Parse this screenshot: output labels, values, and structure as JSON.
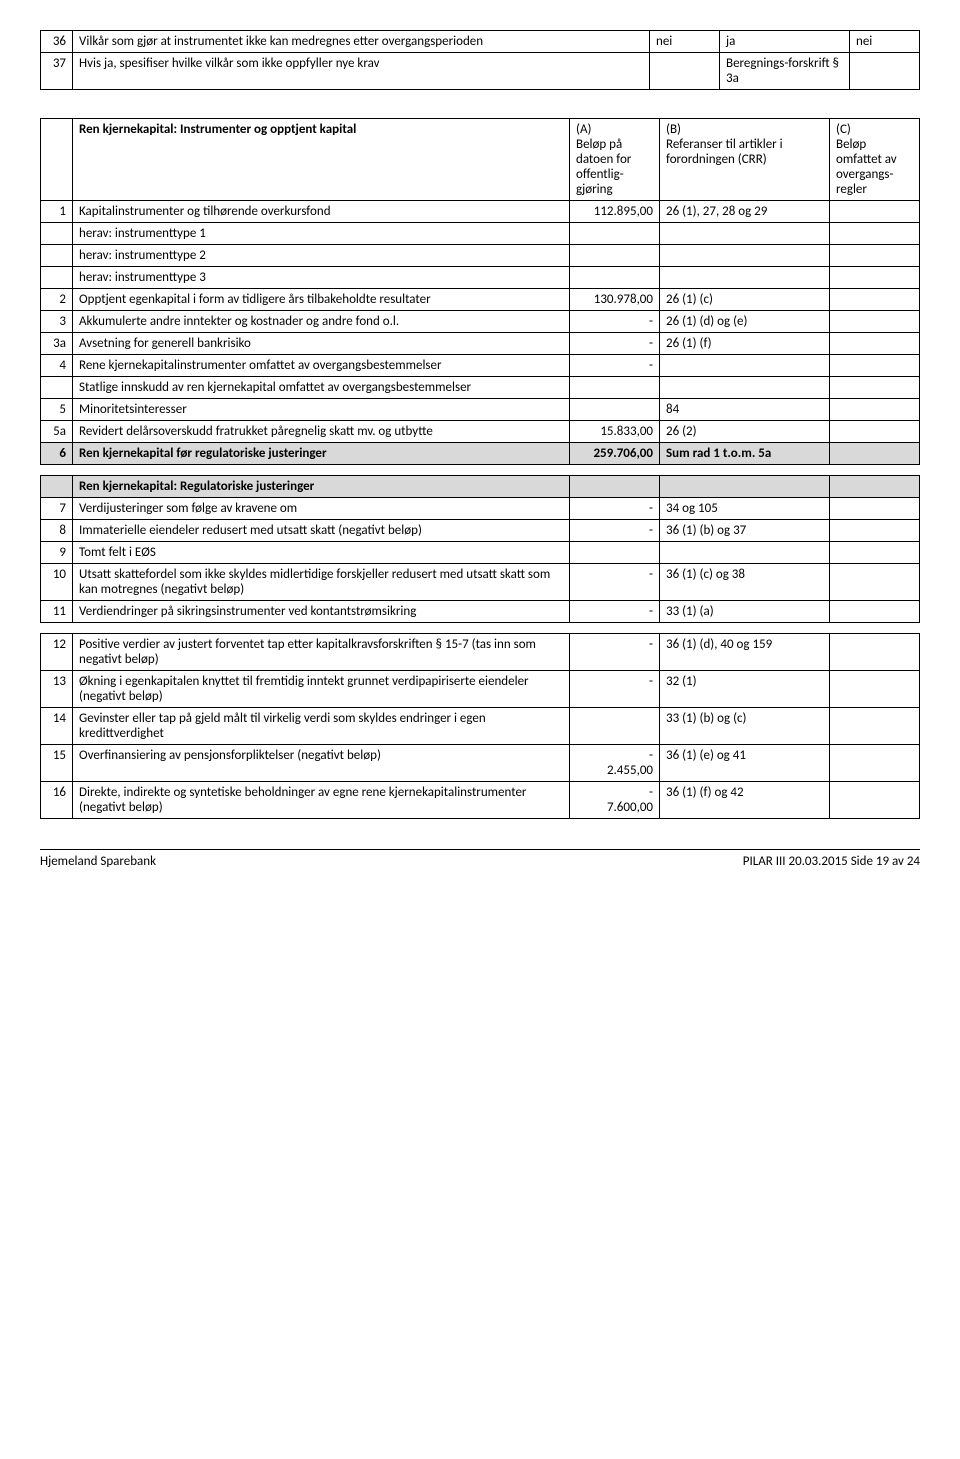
{
  "top_table": {
    "rows": [
      {
        "num": "36",
        "text": "Vilkår som gjør at instrumentet ikke kan medregnes etter overgangsperioden",
        "c1": "nei",
        "c2": "ja",
        "c3": "nei"
      },
      {
        "num": "37",
        "text": "Hvis ja, spesifiser hvilke vilkår som ikke oppfyller nye krav",
        "c1": "",
        "c2": "Beregnings-forskrift § 3a",
        "c3": ""
      }
    ]
  },
  "header": {
    "title": "Ren kjernekapital: Instrumenter og opptjent kapital",
    "A": "(A)\nBeløp på datoen for offentlig-gjøring",
    "B": "(B)\nReferanser til artikler i forordningen (CRR)",
    "C": "(C)\nBeløp omfattet av overgangs-regler"
  },
  "section1": [
    {
      "num": "1",
      "text": "Kapitalinstrumenter og tilhørende overkursfond",
      "amt": "112.895,00",
      "ref": "26 (1), 27, 28 og 29"
    },
    {
      "num": "",
      "text": "herav: instrumenttype 1",
      "amt": "",
      "ref": ""
    },
    {
      "num": "",
      "text": "herav: instrumenttype 2",
      "amt": "",
      "ref": ""
    },
    {
      "num": "",
      "text": "herav: instrumenttype 3",
      "amt": "",
      "ref": ""
    },
    {
      "num": "2",
      "text": "Opptjent egenkapital i form av tidligere års tilbakeholdte resultater",
      "amt": "130.978,00",
      "ref": "26 (1) (c)"
    },
    {
      "num": "3",
      "text": "Akkumulerte andre inntekter og kostnader og andre fond o.l.",
      "amt": "-",
      "ref": "26 (1) (d) og (e)"
    },
    {
      "num": "3a",
      "text": "Avsetning for generell bankrisiko",
      "amt": "-",
      "ref": "26 (1) (f)"
    },
    {
      "num": "4",
      "text": "Rene kjernekapitalinstrumenter omfattet av overgangsbestemmelser",
      "amt": "-",
      "ref": ""
    },
    {
      "num": "",
      "text": "Statlige innskudd av ren kjernekapital omfattet av overgangsbestemmelser",
      "amt": "",
      "ref": ""
    },
    {
      "num": "5",
      "text": "Minoritetsinteresser",
      "amt": "",
      "ref": "84"
    },
    {
      "num": "5a",
      "text": "Revidert delårsoverskudd fratrukket påregnelig skatt mv. og utbytte",
      "amt": "15.833,00",
      "ref": "26 (2)"
    }
  ],
  "totalrow": {
    "num": "6",
    "text": "Ren kjernekapital før regulatoriske justeringer",
    "amt": "259.706,00",
    "ref": "Sum rad 1 t.o.m. 5a"
  },
  "section2_title": "Ren kjernekapital: Regulatoriske justeringer",
  "section2": [
    {
      "num": "7",
      "text": "Verdijusteringer som følge av kravene om",
      "amt": "-",
      "ref": "34 og 105"
    },
    {
      "num": "8",
      "text": "Immaterielle eiendeler redusert med utsatt skatt (negativt beløp)",
      "amt": "-",
      "ref": "36 (1) (b) og 37"
    },
    {
      "num": "9",
      "text": "Tomt felt i EØS",
      "amt": "",
      "ref": ""
    },
    {
      "num": "10",
      "text": "Utsatt skattefordel som ikke skyldes midlertidige forskjeller redusert med utsatt skatt som kan motregnes (negativt beløp)",
      "amt": "-",
      "ref": "36 (1) (c) og 38"
    },
    {
      "num": "11",
      "text": "Verdiendringer på sikringsinstrumenter ved kontantstrømsikring",
      "amt": "-",
      "ref": "33 (1) (a)"
    }
  ],
  "section3": [
    {
      "num": "12",
      "text": "Positive verdier av justert forventet tap etter kapitalkravsforskriften § 15-7 (tas inn som negativt beløp)",
      "amt": "-",
      "ref": "36 (1) (d), 40 og 159"
    },
    {
      "num": "13",
      "text": "Økning i egenkapitalen knyttet til fremtidig inntekt grunnet verdipapiriserte eiendeler (negativt beløp)",
      "amt": "-",
      "ref": "32 (1)"
    },
    {
      "num": "14",
      "text": "Gevinster eller tap på gjeld målt til virkelig verdi som skyldes endringer i egen kredittverdighet",
      "amt": "",
      "ref": "33 (1) (b) og (c)"
    },
    {
      "num": "15",
      "text": "Overfinansiering av pensjonsforpliktelser (negativt beløp)",
      "amt": "-\n2.455,00",
      "ref": "36 (1) (e) og 41"
    },
    {
      "num": "16",
      "text": "Direkte, indirekte og syntetiske beholdninger av egne rene kjernekapitalinstrumenter (negativt beløp)",
      "amt": "-\n7.600,00",
      "ref": "36 (1) (f) og 42"
    }
  ],
  "footer": {
    "left": "Hjemeland Sparebank",
    "right": "PILAR III  20.03.2015  Side 19 av 24"
  }
}
